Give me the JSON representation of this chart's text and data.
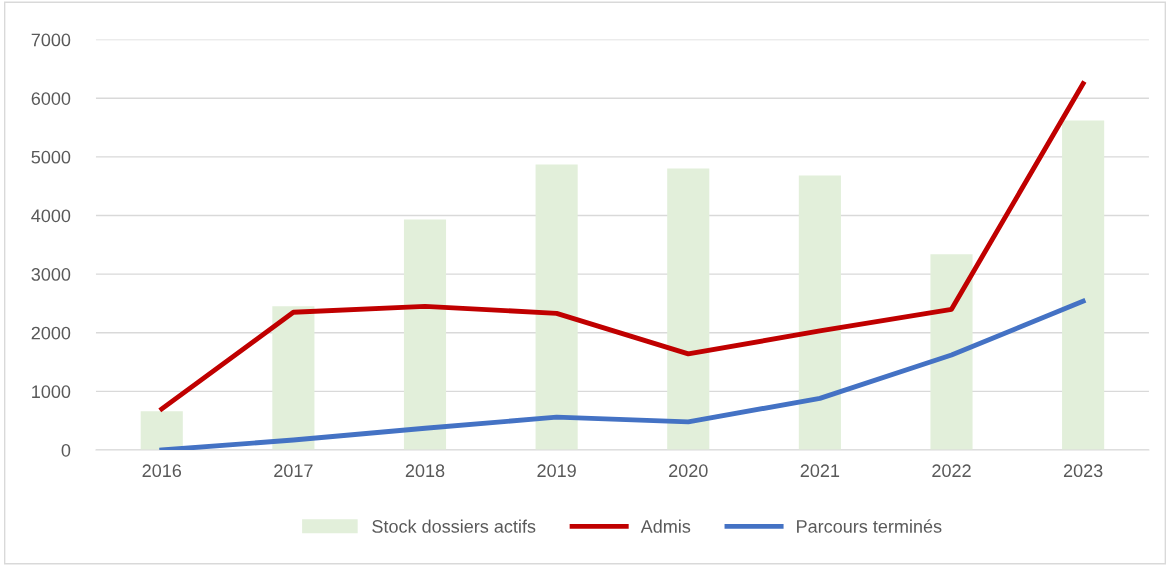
{
  "chart_data": {
    "type": "bar",
    "categories": [
      "2016",
      "2017",
      "2018",
      "2019",
      "2020",
      "2021",
      "2022",
      "2023"
    ],
    "series": [
      {
        "name": "Stock dossiers actifs",
        "color": "#e2efda",
        "values": [
          660,
          2450,
          3930,
          4870,
          4800,
          4680,
          3340,
          5620
        ]
      },
      {
        "name": "Admis",
        "type": "line",
        "color": "#c00000",
        "values": [
          700,
          2350,
          2450,
          2330,
          1640,
          2030,
          2400,
          6250
        ]
      },
      {
        "name": "Parcours terminés",
        "type": "line",
        "color": "#4472c4",
        "values": [
          0,
          170,
          370,
          560,
          480,
          880,
          1620,
          2540
        ]
      }
    ],
    "ylim": [
      0,
      7000
    ],
    "yticks": [
      0,
      1000,
      2000,
      3000,
      4000,
      5000,
      6000,
      7000
    ],
    "grid": "y",
    "legend": "bottom",
    "marker": "none",
    "line_style": "solid"
  }
}
